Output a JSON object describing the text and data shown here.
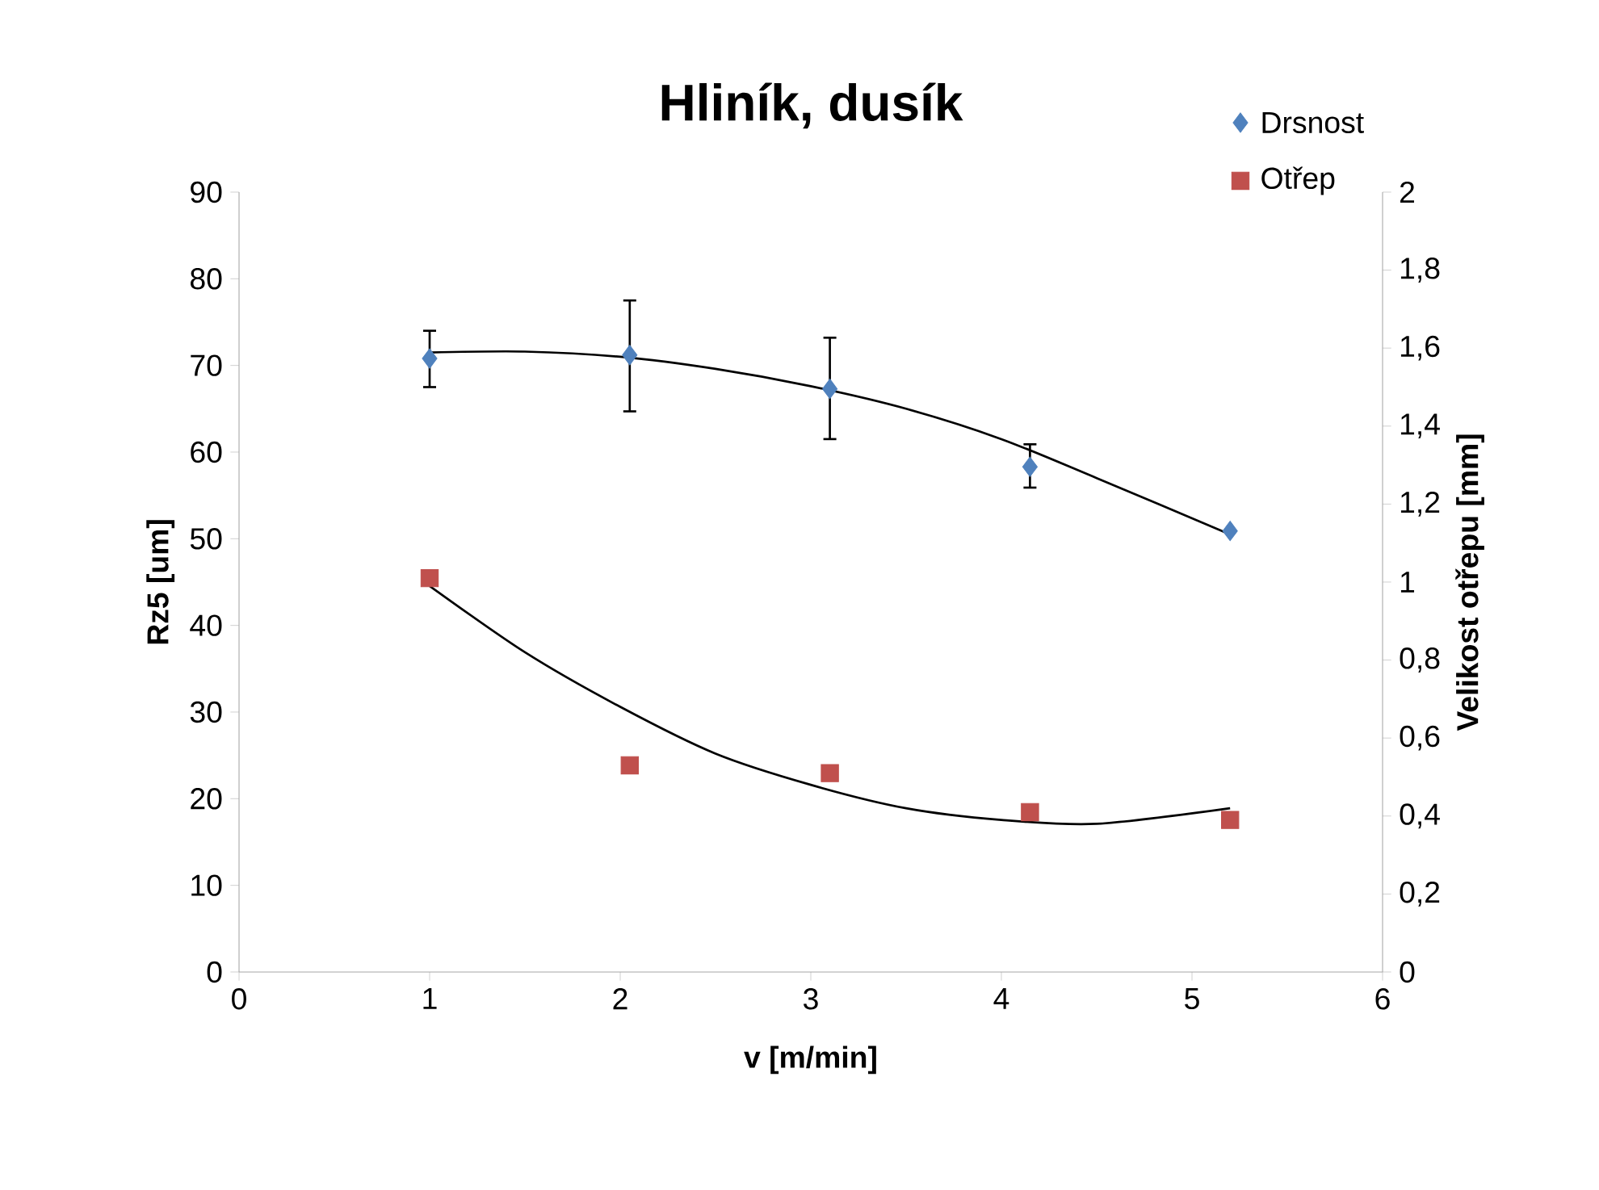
{
  "chart_data": {
    "type": "scatter",
    "title": "Hliník, dusík",
    "xlabel": "v [m/min]",
    "ylabel": "Rz5 [um]",
    "y2label": "Velikost otřepu [mm]",
    "xlim": [
      0,
      6
    ],
    "xticks": [
      0,
      1,
      2,
      3,
      4,
      5,
      6
    ],
    "ylim": [
      0,
      90
    ],
    "yticks": [
      0,
      10,
      20,
      30,
      40,
      50,
      60,
      70,
      80,
      90
    ],
    "y2lim": [
      0,
      2
    ],
    "y2ticks": [
      0,
      {
        "value": 0.2,
        "label": "0,2"
      },
      {
        "value": 0.4,
        "label": "0,4"
      },
      {
        "value": 0.6,
        "label": "0,6"
      },
      {
        "value": 0.8,
        "label": "0,8"
      },
      1,
      {
        "value": 1.2,
        "label": "1,2"
      },
      {
        "value": 1.4,
        "label": "1,4"
      },
      {
        "value": 1.6,
        "label": "1,6"
      },
      {
        "value": 1.8,
        "label": "1,8"
      },
      2
    ],
    "legend": "top right",
    "grid": false,
    "series": [
      {
        "name": "Drsnost",
        "marker": "diamond",
        "color": "#4f81bd",
        "x": [
          1,
          2.05,
          3.1,
          4.15,
          5.2
        ],
        "values": [
          70.8,
          71.2,
          67.3,
          58.3,
          50.9
        ],
        "errors": [
          [
            67.5,
            74.0
          ],
          [
            64.7,
            77.5
          ],
          [
            61.5,
            73.2
          ],
          [
            55.9,
            60.9
          ],
          null
        ]
      },
      {
        "name": "Otřep",
        "marker": "square",
        "color": "#c0504d",
        "axis": "y2",
        "x": [
          1,
          2.05,
          3.1,
          4.15,
          5.2
        ],
        "values": [
          1.01,
          0.53,
          0.51,
          0.41,
          0.39
        ]
      },
      {
        "type": "line",
        "marker": "none",
        "color": "#000000",
        "x": [
          1,
          1.5,
          2,
          2.5,
          3,
          3.5,
          4,
          4.5,
          5.2
        ],
        "values": [
          71.5,
          71.6,
          71.0,
          69.6,
          67.6,
          65.0,
          61.5,
          57.0,
          50.5
        ]
      },
      {
        "type": "line",
        "marker": "none",
        "color": "#000000",
        "axis": "y2",
        "x": [
          1,
          1.5,
          2,
          2.5,
          3,
          3.5,
          4,
          4.5,
          5.2
        ],
        "values": [
          0.99,
          0.82,
          0.68,
          0.56,
          0.48,
          0.42,
          0.39,
          0.38,
          0.42
        ]
      }
    ]
  }
}
